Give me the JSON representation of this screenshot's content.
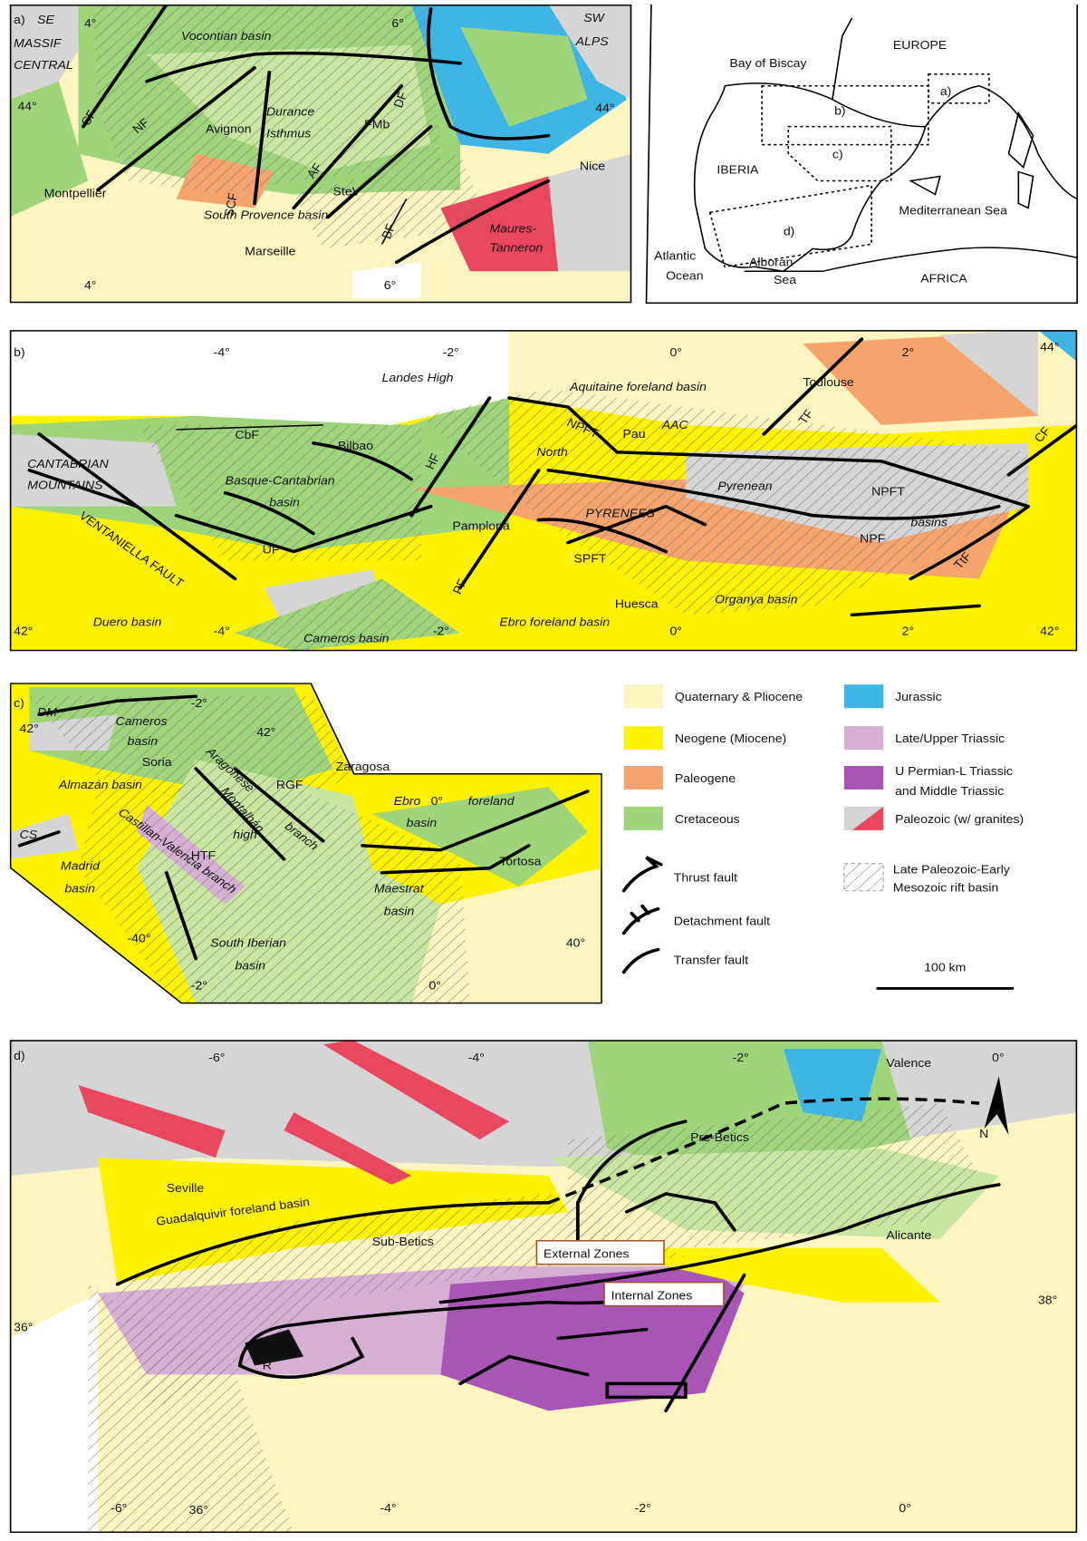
{
  "panel_a": {
    "texts": [
      "a)",
      "4°",
      "6°",
      "SE",
      "MASSIF",
      "CENTRAL",
      "Vocontian basin",
      "SW",
      "ALPS",
      "CF",
      "NF",
      "Avignon",
      "Durance",
      "Isthmus",
      "FMb",
      "DF",
      "44°",
      "44°",
      "AF",
      "SCF",
      "SteV",
      "Nice",
      "Montpellier",
      "South Provence basin",
      "BF",
      "Maures-",
      "Tanneron",
      "Marseille",
      "6°",
      "4°"
    ]
  },
  "inset_map": {
    "texts": [
      "EUROPE",
      "Bay of Biscay",
      "a)",
      "b)",
      "IBERIA",
      "c)",
      "Mediterranean Sea",
      "d)",
      "Atlantic",
      "Ocean",
      "Alboran",
      "Sea",
      "AFRICA"
    ]
  },
  "panel_b": {
    "texts": [
      "b)",
      "-4°",
      "-2°",
      "0°",
      "2°",
      "44°",
      "Landes High",
      "Aquitaine foreland basin",
      "Toulouse",
      "AAC",
      "Pau",
      "NPFT",
      "TF",
      "CF",
      "CbF",
      "Bilbao",
      "CANTABRIAN",
      "MOUNTAINS",
      "Basque-Cantabrian",
      "basin",
      "HF",
      "North",
      "Pyrenean",
      "NPFT",
      "PYRENEES",
      "basins",
      "VENTANIELLA FAULT",
      "UF",
      "Pamplona",
      "PF",
      "NPF",
      "SPFT",
      "TtF",
      "Huesca",
      "Organya basin",
      "42°",
      "Duero basin",
      "-4°",
      "Cameros basin",
      "-2°",
      "Ebro foreland basin",
      "0°",
      "2°",
      "42°"
    ]
  },
  "panel_c": {
    "texts": [
      "c)",
      "DM",
      "-2°",
      "42°",
      "Cameros",
      "basin",
      "42°",
      "Soria",
      "Zaragosa",
      "Aragonese",
      "RGF",
      "Almazán basin",
      "Ebro",
      "0°",
      "foreland",
      "basin",
      "branch",
      "CS",
      "Montalbán",
      "high",
      "Castillan-Valencia branch",
      "Tortosa",
      "Madrid",
      "basin",
      "HTF",
      "Maestrat",
      "basin",
      "-40°",
      "South Iberian",
      "basin",
      "40°",
      "-2°",
      "0°"
    ]
  },
  "legend": {
    "items": [
      [
        "Quaternary & Pliocene"
      ],
      [
        "Jurassic"
      ],
      [
        "Neogene (Miocene)"
      ],
      [
        "Late/Upper Triassic"
      ],
      [
        "Paleogene"
      ],
      [
        "U Permian-L Triassic",
        "and Middle Triassic"
      ],
      [
        "Cretaceous"
      ],
      [
        "Paleozoic (w/ granites)"
      ]
    ],
    "symbols": [
      "Thrust fault",
      "Detachment fault",
      "Transfer fault"
    ],
    "rift_basin": [
      "Late Paleozoic-Early",
      "Mesozoic rift basin"
    ],
    "scale_bar": "100 km"
  },
  "panel_d": {
    "texts": [
      "d)",
      "-6°",
      "-4°",
      "-2°",
      "0°",
      "Valence",
      "Pre-Betics",
      "N",
      "Seville",
      "Guadalquivir foreland basin",
      "Alicante",
      "Sub-Betics",
      "External Zones",
      "Internal Zones",
      "38°",
      "36°",
      "R",
      "-6°",
      "36°",
      "-4°",
      "-2°",
      "0°"
    ]
  }
}
